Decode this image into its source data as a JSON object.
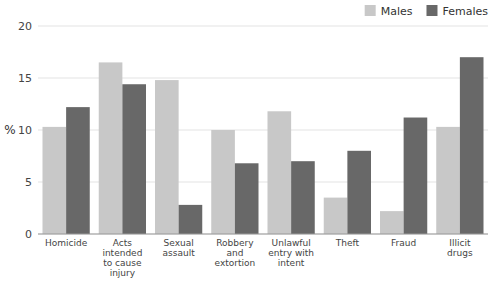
{
  "chart_data": {
    "type": "bar",
    "y_label": "%",
    "categories": [
      "Homicide",
      "Acts\nintended\nto cause\ninjury",
      "Sexual\nassault",
      "Robbery\nand\nextortion",
      "Unlawful\nentry with\nintent",
      "Theft",
      "Fraud",
      "Illicit\ndrugs"
    ],
    "series": [
      {
        "name": "Males",
        "color": "#c8c8c8",
        "values": [
          10.3,
          16.5,
          14.8,
          10.0,
          11.8,
          3.5,
          2.2,
          10.3
        ]
      },
      {
        "name": "Females",
        "color": "#686868",
        "values": [
          12.2,
          14.4,
          2.8,
          6.8,
          7.0,
          8.0,
          11.2,
          17.0
        ]
      }
    ],
    "ylim": [
      0,
      20
    ],
    "yticks": [
      0,
      5,
      10,
      15,
      20
    ],
    "grid": true,
    "legend": "upper right"
  }
}
